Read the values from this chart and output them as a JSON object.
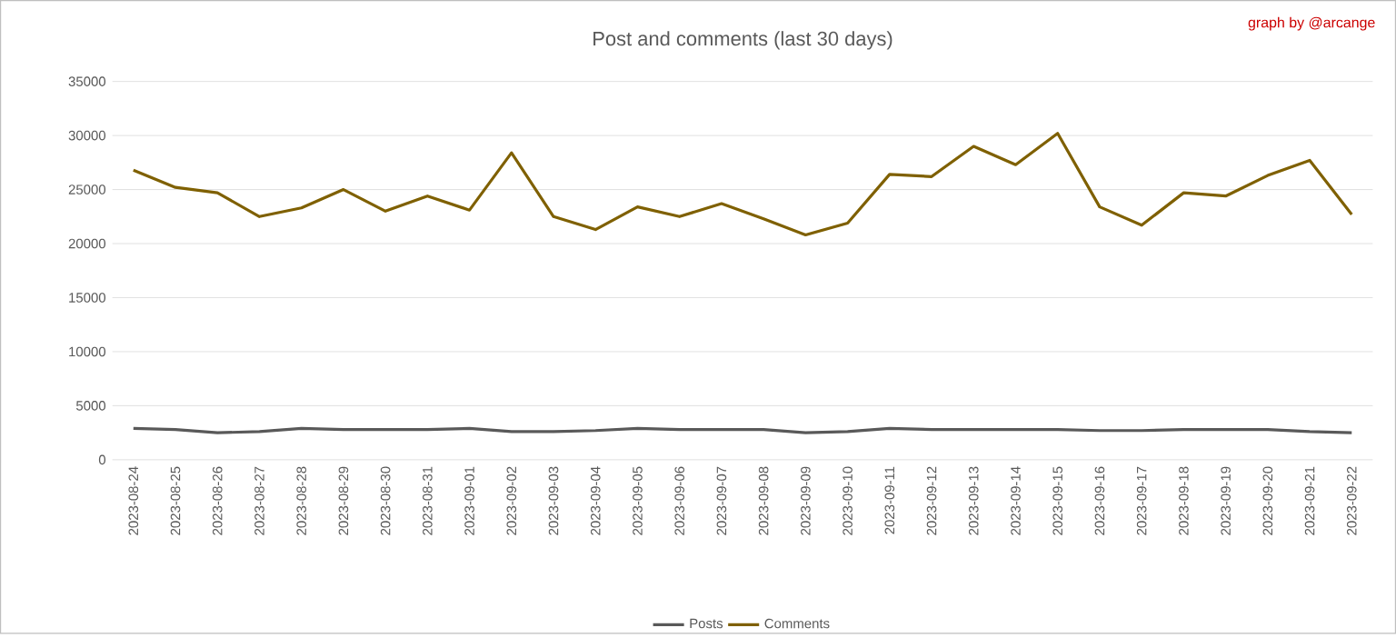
{
  "chart_data": {
    "type": "line",
    "title": "Post and comments (last 30 days)",
    "annotations": [
      "graph by @arcange"
    ],
    "categories": [
      "2023-08-24",
      "2023-08-25",
      "2023-08-26",
      "2023-08-27",
      "2023-08-28",
      "2023-08-29",
      "2023-08-30",
      "2023-08-31",
      "2023-09-01",
      "2023-09-02",
      "2023-09-03",
      "2023-09-04",
      "2023-09-05",
      "2023-09-06",
      "2023-09-07",
      "2023-09-08",
      "2023-09-09",
      "2023-09-10",
      "2023-09-11",
      "2023-09-12",
      "2023-09-13",
      "2023-09-14",
      "2023-09-15",
      "2023-09-16",
      "2023-09-17",
      "2023-09-18",
      "2023-09-19",
      "2023-09-20",
      "2023-09-21",
      "2023-09-22"
    ],
    "series": [
      {
        "name": "Posts",
        "color": "#595959",
        "values": [
          2900,
          2800,
          2500,
          2600,
          2900,
          2800,
          2800,
          2800,
          2900,
          2600,
          2600,
          2700,
          2900,
          2800,
          2800,
          2800,
          2500,
          2600,
          2900,
          2800,
          2800,
          2800,
          2800,
          2700,
          2700,
          2800,
          2800,
          2800,
          2600,
          2500
        ]
      },
      {
        "name": "Comments",
        "color": "#7f6000",
        "values": [
          26800,
          25200,
          24700,
          22500,
          23300,
          25000,
          23000,
          24400,
          23100,
          28400,
          22500,
          21300,
          23400,
          22500,
          23700,
          22300,
          20800,
          21900,
          26400,
          26200,
          29000,
          27300,
          30200,
          23400,
          21700,
          24700,
          24400,
          26300,
          27700,
          22700
        ]
      }
    ],
    "ylim": [
      0,
      35000
    ],
    "yticks": [
      0,
      5000,
      10000,
      15000,
      20000,
      25000,
      30000,
      35000
    ],
    "grid": "y",
    "legend": "bottom"
  }
}
